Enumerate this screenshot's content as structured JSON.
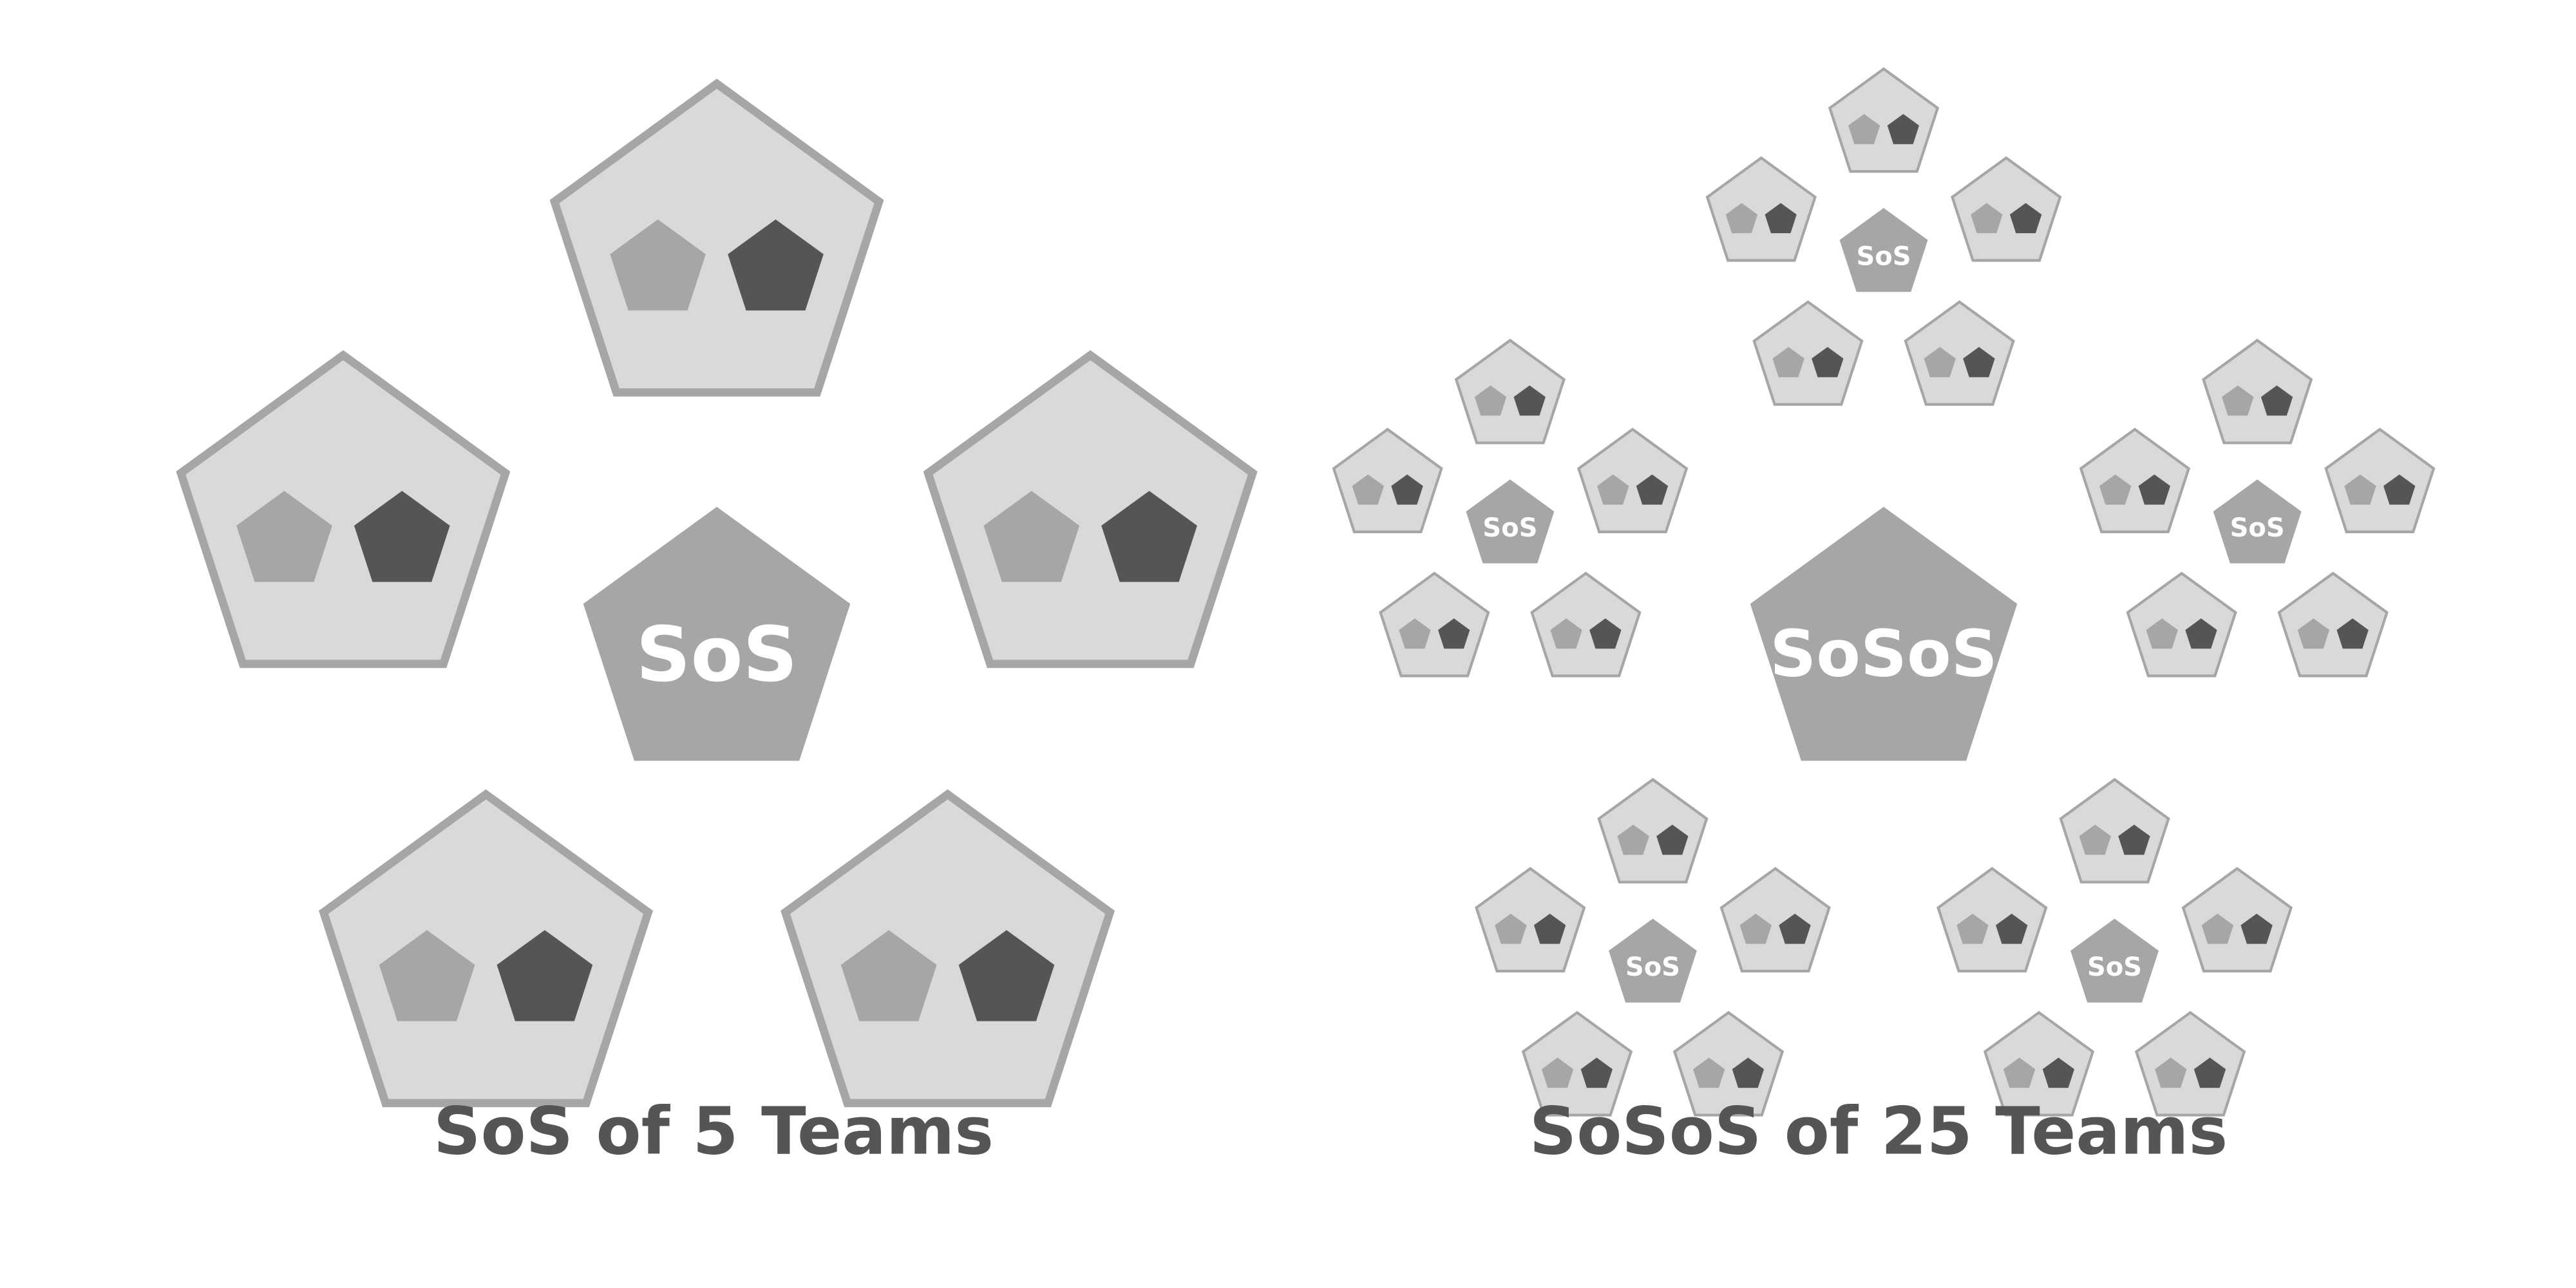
{
  "colors": {
    "team_fill": "#d9d9d9",
    "team_outline": "#a6a6a6",
    "member_light": "#a6a6a6",
    "member_dark": "#555555",
    "hub_fill": "#a6a6a6",
    "hub_text": "#ffffff",
    "caption_text": "#555555",
    "background": "#ffffff"
  },
  "left_diagram": {
    "hub_label": "SoS",
    "team_count": 5,
    "caption": "SoS of 5 Teams"
  },
  "right_diagram": {
    "hub_label": "SoSoS",
    "cluster_hub_label": "SoS",
    "cluster_count": 5,
    "teams_per_cluster": 5,
    "caption": "SoSoS of 25 Teams"
  }
}
